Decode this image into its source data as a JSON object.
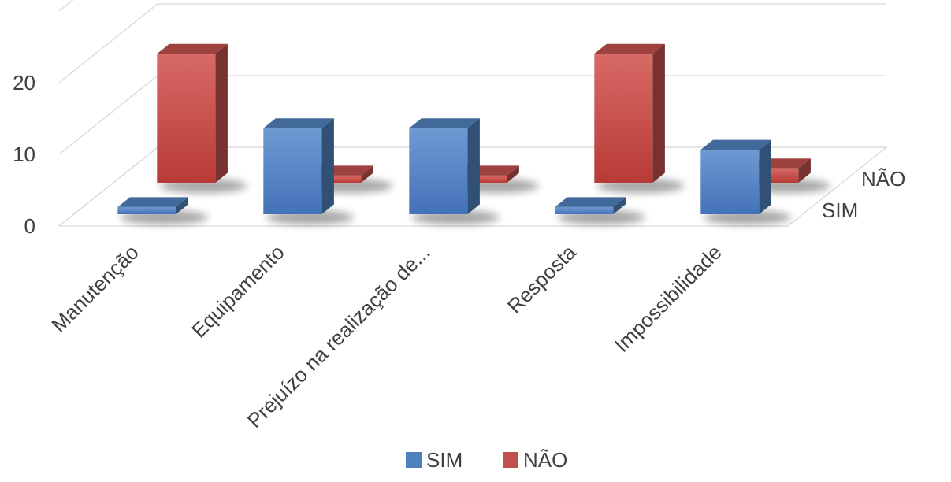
{
  "chart_data": {
    "type": "bar",
    "subtype": "3d-column",
    "title": "",
    "xlabel": "",
    "ylabel": "",
    "categories": [
      "Manutenção",
      "Equipamento",
      "Prejuízo na realização de...",
      "Resposta",
      "Impossibilidade"
    ],
    "depth_labels": [
      "SIM",
      "NÃO"
    ],
    "series": [
      {
        "name": "SIM",
        "color": "#4F81BD",
        "values": [
          1,
          12,
          12,
          1,
          9
        ]
      },
      {
        "name": "NÃO",
        "color": "#C0504D",
        "values": [
          18,
          1,
          1,
          18,
          2
        ]
      }
    ],
    "ylim": [
      0,
      30
    ],
    "yticks": [
      0,
      10,
      20
    ],
    "grid": true,
    "legend": {
      "position": "bottom",
      "entries": [
        "SIM",
        "NÃO"
      ]
    }
  }
}
